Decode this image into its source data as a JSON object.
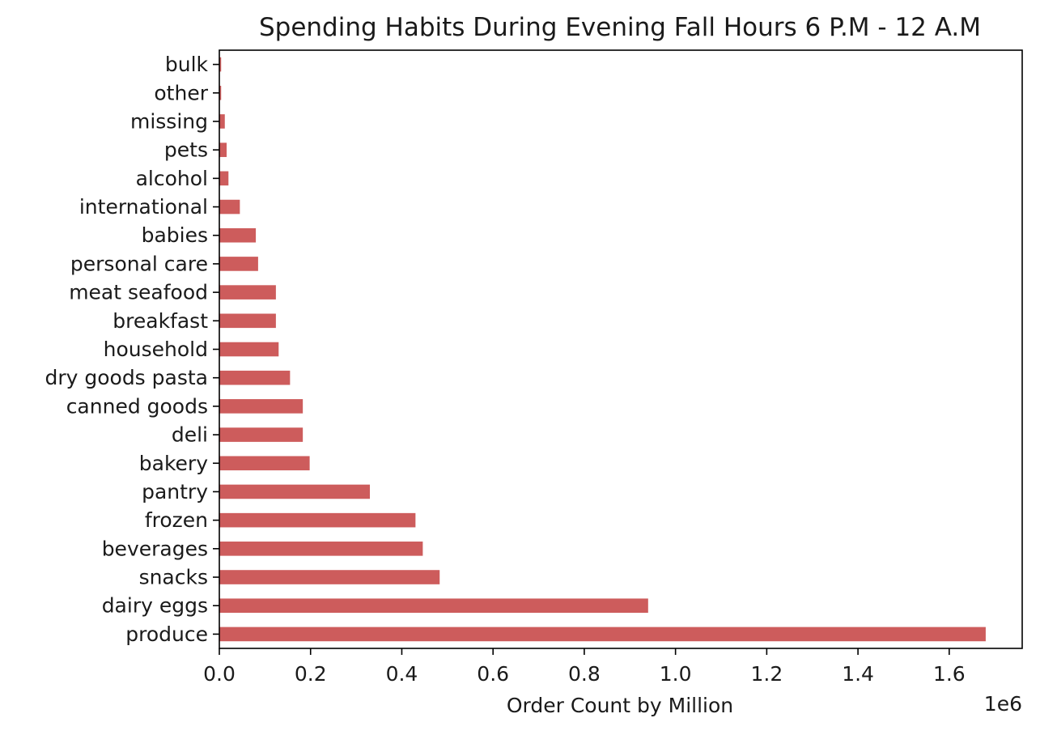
{
  "chart_data": {
    "type": "bar",
    "orientation": "horizontal",
    "title": "Spending Habits During Evening Fall Hours 6 P.M - 12 A.M",
    "xlabel": "Order Count by Million",
    "ylabel": "",
    "x_offset_label": "1e6",
    "xlim": [
      0,
      1760000
    ],
    "xticks": [
      0,
      200000,
      400000,
      600000,
      800000,
      1000000,
      1200000,
      1400000,
      1600000
    ],
    "xtick_labels": [
      "0.0",
      "0.2",
      "0.4",
      "0.6",
      "0.8",
      "1.0",
      "1.2",
      "1.4",
      "1.6"
    ],
    "grid": false,
    "bar_color": "#cd5c5c",
    "categories": [
      "produce",
      "dairy eggs",
      "snacks",
      "beverages",
      "frozen",
      "pantry",
      "bakery",
      "deli",
      "canned goods",
      "dry goods pasta",
      "household",
      "breakfast",
      "meat seafood",
      "personal care",
      "babies",
      "international",
      "alcohol",
      "pets",
      "missing",
      "other",
      "bulk"
    ],
    "values": [
      1680000,
      940000,
      483000,
      446000,
      430000,
      330000,
      198000,
      183000,
      183000,
      155000,
      130000,
      124000,
      124000,
      85000,
      80000,
      45000,
      20000,
      16000,
      12000,
      4000,
      4000
    ]
  }
}
